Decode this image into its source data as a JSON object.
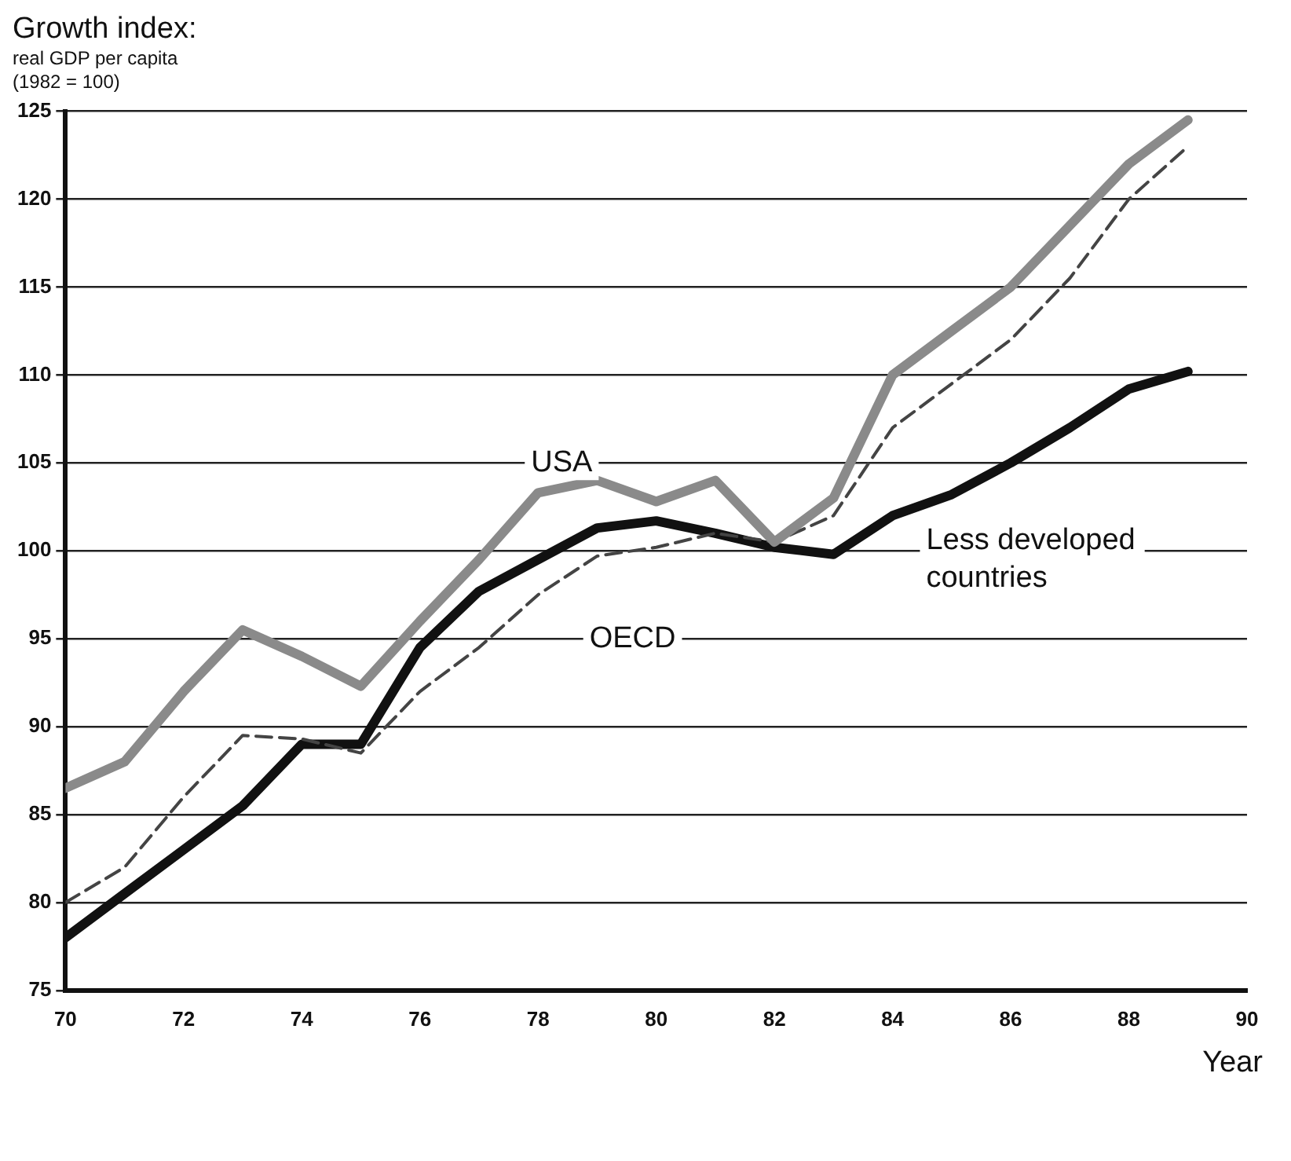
{
  "chart_data": {
    "type": "line",
    "title": "Growth index:",
    "subtitle": "real GDP per capita (1982 = 100)",
    "xlabel": "Year",
    "x": [
      70,
      71,
      72,
      73,
      74,
      75,
      76,
      77,
      78,
      79,
      80,
      81,
      82,
      83,
      84,
      85,
      86,
      87,
      88,
      89
    ],
    "xlim": [
      70,
      90
    ],
    "xticks": [
      70,
      72,
      74,
      76,
      78,
      80,
      82,
      84,
      86,
      88,
      90
    ],
    "ylim": [
      75,
      125
    ],
    "yticks": [
      75,
      80,
      85,
      90,
      95,
      100,
      105,
      110,
      115,
      120,
      125
    ],
    "grid": "y",
    "legend": false,
    "marker": "none",
    "series": [
      {
        "name": "USA",
        "color": "#8a8a8a",
        "line_style": "solid",
        "values": [
          86.5,
          88,
          92,
          95.5,
          94,
          92.3,
          96,
          99.5,
          103.3,
          104,
          102.8,
          104,
          100.5,
          103,
          110,
          112.5,
          115,
          118.5,
          122,
          124.5
        ]
      },
      {
        "name": "OECD",
        "color": "#444444",
        "line_style": "dashed",
        "values": [
          80,
          82,
          86,
          89.5,
          89.3,
          88.5,
          92,
          94.5,
          97.5,
          99.7,
          100.2,
          101,
          100.5,
          102,
          107,
          109.5,
          112,
          115.5,
          120,
          123
        ]
      },
      {
        "name": "Less developed countries",
        "color": "#111111",
        "line_style": "solid",
        "values": [
          78,
          80.5,
          83,
          85.5,
          89,
          89,
          94.5,
          97.7,
          99.5,
          101.3,
          101.7,
          101,
          100.2,
          99.8,
          102,
          103.2,
          105,
          107,
          109.2,
          110.2
        ]
      }
    ]
  }
}
